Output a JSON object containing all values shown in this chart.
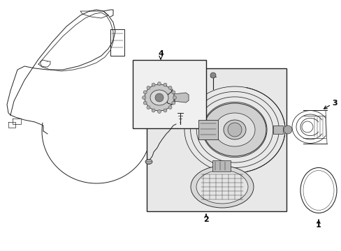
{
  "bg_color": "#ffffff",
  "lc": "#222222",
  "lc_light": "#555555",
  "box_bg": "#e8e8e8",
  "part_lw": 0.7,
  "label_fs": 8,
  "figw": 4.89,
  "figh": 3.6,
  "dpi": 100
}
